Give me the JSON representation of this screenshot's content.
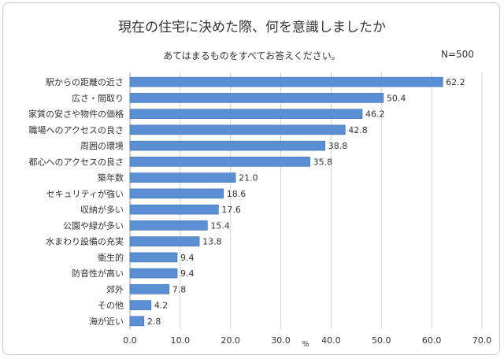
{
  "chart_data": {
    "type": "bar",
    "orientation": "horizontal",
    "title": "現在の住宅に決めた際、何を意識しましたか",
    "subtitle": "あてはまるものをすべてお答えください。",
    "sample_size": "N=500",
    "xlabel": "%",
    "xlim": [
      0,
      70
    ],
    "xticks": [
      "0.0",
      "10.0",
      "20.0",
      "30.0",
      "40.0",
      "50.0",
      "60.0",
      "70.0"
    ],
    "grid": true,
    "bar_color": "#5b8fd3",
    "categories": [
      "駅からの距離の近さ",
      "広さ・間取り",
      "家賃の安さや物件の価格",
      "職場へのアクセスの良さ",
      "周囲の環境",
      "都心へのアクセスの良さ",
      "築年数",
      "セキュリティが強い",
      "収納が多い",
      "公園や緑が多い",
      "水まわり設備の充実",
      "衛生的",
      "防音性が高い",
      "郊外",
      "その他",
      "海が近い"
    ],
    "values": [
      62.2,
      50.4,
      46.2,
      42.8,
      38.8,
      35.8,
      21.0,
      18.6,
      17.6,
      15.4,
      13.8,
      9.4,
      9.4,
      7.8,
      4.2,
      2.8
    ],
    "value_labels": [
      "62.2",
      "50.4",
      "46.2",
      "42.8",
      "38.8",
      "35.8",
      "21.0",
      "18.6",
      "17.6",
      "15.4",
      "13.8",
      "9.4",
      "9.4",
      "7.8",
      "4.2",
      "2.8"
    ]
  }
}
